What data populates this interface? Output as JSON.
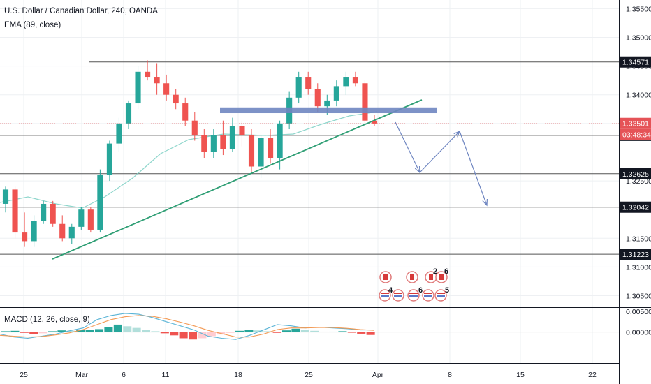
{
  "header": {
    "symbol_title": "U.S. Dollar / Canadian Dollar, 240, OANDA",
    "ema_label": "EMA (89, close)",
    "macd_label": "MACD (12, 26, close, 9)"
  },
  "colors": {
    "up": "#26a69a",
    "down": "#ef5350",
    "ema": "#8fd6cc",
    "trendline": "#2e9e74",
    "zone": "#6f86c1",
    "arrows": "#6f86c1",
    "hline": "#555555",
    "macd_line": "#5ab4d6",
    "signal_line": "#f39a55",
    "grid": "#eef0f3",
    "price_tag": "#e55357"
  },
  "chart_data": [
    {
      "type": "candlestick",
      "title": "U.S. Dollar / Canadian Dollar, 240, OANDA",
      "x_tick_labels": [
        "25",
        "Mar",
        "6",
        "11",
        "18",
        "25",
        "Apr",
        "8",
        "15",
        "22"
      ],
      "y_tick_labels": [
        "1.35500",
        "1.35000",
        "1.34500",
        "1.34000",
        "1.33500",
        "1.32500",
        "1.31500",
        "1.31000",
        "1.30500"
      ],
      "ylim": [
        1.303,
        1.3565
      ],
      "candles": [
        [
          1.321,
          1.324,
          1.3195,
          1.3235
        ],
        [
          1.3235,
          1.324,
          1.315,
          1.316
        ],
        [
          1.316,
          1.3195,
          1.3135,
          1.3145
        ],
        [
          1.3145,
          1.319,
          1.3135,
          1.318
        ],
        [
          1.318,
          1.3215,
          1.3175,
          1.321
        ],
        [
          1.321,
          1.3215,
          1.317,
          1.3175
        ],
        [
          1.3175,
          1.319,
          1.3145,
          1.315
        ],
        [
          1.315,
          1.3175,
          1.314,
          1.317
        ],
        [
          1.317,
          1.3205,
          1.3165,
          1.32
        ],
        [
          1.32,
          1.3205,
          1.316,
          1.3165
        ],
        [
          1.3165,
          1.327,
          1.316,
          1.326
        ],
        [
          1.326,
          1.332,
          1.325,
          1.3315
        ],
        [
          1.3315,
          1.336,
          1.33,
          1.335
        ],
        [
          1.335,
          1.339,
          1.334,
          1.3385
        ],
        [
          1.3385,
          1.345,
          1.3375,
          1.344
        ],
        [
          1.344,
          1.346,
          1.3425,
          1.343
        ],
        [
          1.343,
          1.3455,
          1.34,
          1.342
        ],
        [
          1.342,
          1.3435,
          1.339,
          1.34
        ],
        [
          1.34,
          1.341,
          1.3375,
          1.3385
        ],
        [
          1.3385,
          1.3395,
          1.3345,
          1.3355
        ],
        [
          1.3355,
          1.337,
          1.332,
          1.333
        ],
        [
          1.333,
          1.334,
          1.329,
          1.33
        ],
        [
          1.33,
          1.334,
          1.329,
          1.333
        ],
        [
          1.333,
          1.3355,
          1.3295,
          1.3305
        ],
        [
          1.3305,
          1.336,
          1.33,
          1.3345
        ],
        [
          1.3345,
          1.3355,
          1.331,
          1.333
        ],
        [
          1.333,
          1.334,
          1.3265,
          1.3275
        ],
        [
          1.3275,
          1.333,
          1.3255,
          1.3325
        ],
        [
          1.3325,
          1.334,
          1.328,
          1.329
        ],
        [
          1.329,
          1.3355,
          1.327,
          1.335
        ],
        [
          1.335,
          1.3405,
          1.334,
          1.3395
        ],
        [
          1.3395,
          1.344,
          1.3385,
          1.343
        ],
        [
          1.343,
          1.344,
          1.34,
          1.341
        ],
        [
          1.341,
          1.342,
          1.337,
          1.338
        ],
        [
          1.338,
          1.34,
          1.3365,
          1.339
        ],
        [
          1.339,
          1.3425,
          1.338,
          1.3415
        ],
        [
          1.3415,
          1.344,
          1.34,
          1.343
        ],
        [
          1.343,
          1.344,
          1.3415,
          1.342
        ],
        [
          1.342,
          1.3425,
          1.335,
          1.3355
        ],
        [
          1.3355,
          1.3365,
          1.3345,
          1.335
        ]
      ]
    },
    {
      "type": "bar",
      "title": "MACD (12, 26, close, 9)",
      "y_tick_labels": [
        "0.00500",
        "0.00000"
      ],
      "ylim": [
        -0.0075,
        0.0055
      ],
      "histogram": [
        0.0002,
        0.0003,
        -0.0002,
        -0.0005,
        -0.0003,
        0.0002,
        0.0004,
        0.0003,
        0.0005,
        0.0006,
        0.0007,
        0.0012,
        0.0018,
        0.0014,
        0.001,
        0.0006,
        0.0002,
        -0.0003,
        -0.0008,
        -0.0015,
        -0.0018,
        -0.0015,
        -0.001,
        -0.0006,
        -0.0002,
        0.0003,
        0.0005,
        0.0004,
        0.0002,
        -0.0002,
        0.0004,
        0.0008,
        0.0006,
        0.0003,
        0.0001,
        0.0001,
        0.0002,
        -0.0001,
        -0.0004,
        -0.0007
      ],
      "macd": [
        -0.0005,
        -0.0012,
        -0.0015,
        -0.001,
        -0.0005,
        0.0003,
        0.001,
        0.003,
        0.004,
        0.0045,
        0.0043,
        0.0035,
        0.0025,
        0.0015,
        0.0005,
        -0.001,
        -0.0015,
        -0.0018,
        -0.0008,
        0.0005,
        0.0018,
        0.0015,
        0.001,
        0.0012,
        0.001,
        0.0008,
        0.0005,
        0.0005
      ],
      "signal": [
        -0.0008,
        -0.001,
        -0.0012,
        -0.0011,
        -0.0007,
        -0.0002,
        0.0006,
        0.0018,
        0.003,
        0.0037,
        0.004,
        0.0038,
        0.0032,
        0.0024,
        0.0015,
        0.0004,
        -0.0004,
        -0.0012,
        -0.0012,
        -0.0005,
        0.0006,
        0.001,
        0.001,
        0.0011,
        0.0011,
        0.0009,
        0.0006,
        0.0004
      ]
    }
  ],
  "annotations": {
    "horizontal_levels": [
      {
        "price": 1.34571,
        "label": "1.34571"
      },
      {
        "price": 1.33293,
        "label": "1.33293"
      },
      {
        "price": 1.32625,
        "label": "1.32625"
      },
      {
        "price": 1.32042,
        "label": "1.32042"
      },
      {
        "price": 1.31223,
        "label": "1.31223"
      }
    ],
    "current_price_label": "1.33501",
    "countdown_label": "03:48:34",
    "zone": {
      "price_top": 1.3378,
      "price_bottom": 1.3368
    },
    "event_badges": [
      "2",
      "6",
      "4",
      "6",
      "5"
    ]
  }
}
